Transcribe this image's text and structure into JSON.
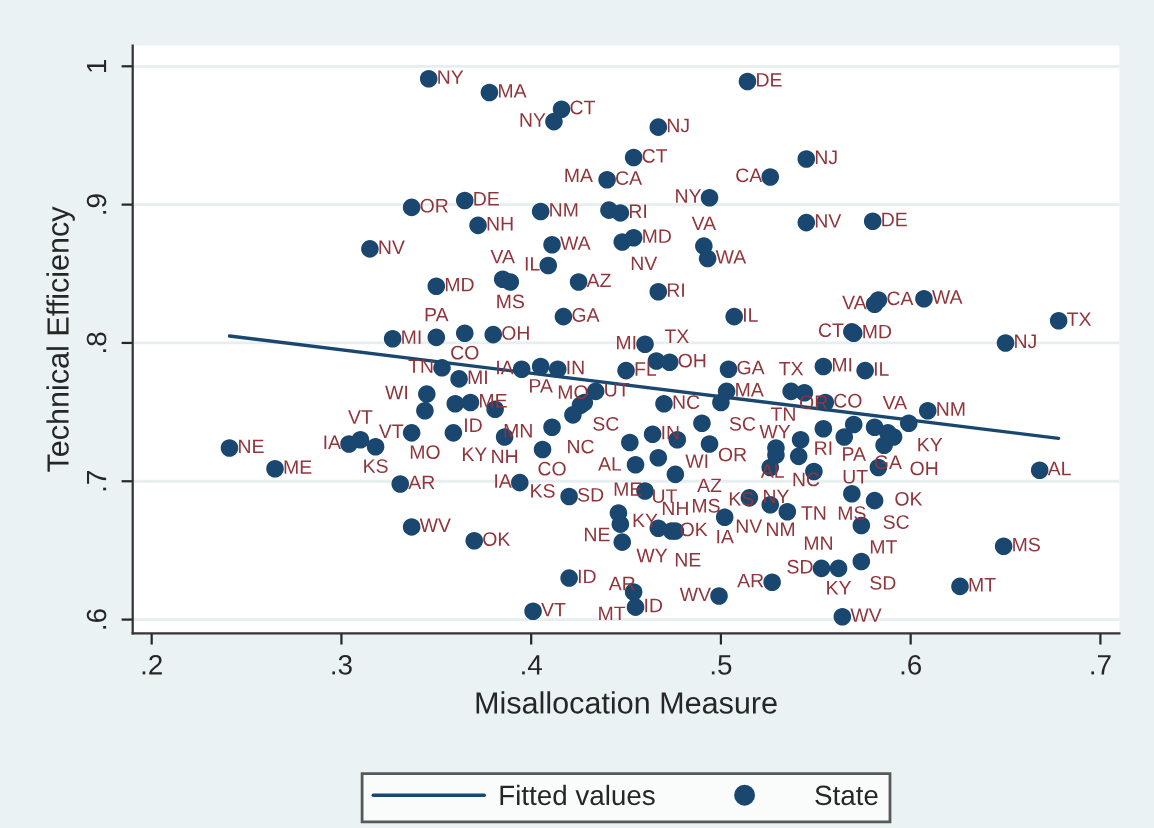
{
  "chart_data": {
    "type": "scatter",
    "xlabel": "Misallocation Measure",
    "ylabel": "Technical Efficiency",
    "xlim": [
      0.19,
      0.71
    ],
    "ylim": [
      0.59,
      1.015
    ],
    "xticks": [
      {
        "value": 0.2,
        "label": ".2"
      },
      {
        "value": 0.3,
        "label": ".3"
      },
      {
        "value": 0.4,
        "label": ".4"
      },
      {
        "value": 0.5,
        "label": ".5"
      },
      {
        "value": 0.6,
        "label": ".6"
      },
      {
        "value": 0.7,
        "label": ".7"
      }
    ],
    "yticks": [
      {
        "value": 0.6,
        "label": ".6"
      },
      {
        "value": 0.7,
        "label": ".7"
      },
      {
        "value": 0.8,
        "label": ".8"
      },
      {
        "value": 0.9,
        "label": ".9"
      },
      {
        "value": 1,
        "label": "1"
      }
    ],
    "grid": "y",
    "legend": "bottom",
    "series": [
      {
        "name": "Fitted values",
        "type": "line",
        "marker": "none",
        "color": "#1a476f",
        "x": [
          0.241,
          0.678
        ],
        "values": [
          0.805,
          0.731
        ]
      },
      {
        "name": "State",
        "marker": "circle",
        "color": "#1a476f",
        "x": [
          0.346,
          0.378,
          0.416,
          0.412,
          0.337,
          0.365,
          0.372,
          0.405,
          0.315,
          0.411,
          0.409,
          0.35,
          0.385,
          0.389,
          0.425,
          0.417,
          0.327,
          0.35,
          0.365,
          0.38,
          0.514,
          0.467,
          0.454,
          0.44,
          0.545,
          0.526,
          0.494,
          0.441,
          0.447,
          0.448,
          0.454,
          0.491,
          0.493,
          0.545,
          0.58,
          0.467,
          0.507,
          0.583,
          0.581,
          0.607,
          0.678,
          0.569,
          0.57,
          0.65,
          0.46,
          0.353,
          0.362,
          0.395,
          0.405,
          0.414,
          0.345,
          0.344,
          0.36,
          0.368,
          0.381,
          0.434,
          0.428,
          0.426,
          0.422,
          0.411,
          0.386,
          0.406,
          0.359,
          0.337,
          0.304,
          0.31,
          0.318,
          0.241,
          0.265,
          0.331,
          0.394,
          0.42,
          0.337,
          0.37,
          0.42,
          0.401,
          0.45,
          0.466,
          0.473,
          0.504,
          0.554,
          0.576,
          0.47,
          0.5,
          0.503,
          0.537,
          0.544,
          0.555,
          0.49,
          0.464,
          0.477,
          0.452,
          0.494,
          0.467,
          0.455,
          0.476,
          0.609,
          0.554,
          0.57,
          0.581,
          0.599,
          0.591,
          0.588,
          0.586,
          0.583,
          0.542,
          0.565,
          0.529,
          0.529,
          0.541,
          0.526,
          0.549,
          0.668,
          0.46,
          0.446,
          0.447,
          0.448,
          0.467,
          0.474,
          0.476,
          0.502,
          0.515,
          0.526,
          0.535,
          0.569,
          0.581,
          0.574,
          0.649,
          0.553,
          0.562,
          0.574,
          0.527,
          0.626,
          0.454,
          0.455,
          0.499,
          0.564
        ],
        "values": [
          0.991,
          0.981,
          0.969,
          0.96,
          0.898,
          0.903,
          0.885,
          0.895,
          0.868,
          0.871,
          0.856,
          0.841,
          0.846,
          0.844,
          0.844,
          0.819,
          0.803,
          0.804,
          0.807,
          0.806,
          0.989,
          0.956,
          0.934,
          0.918,
          0.933,
          0.92,
          0.905,
          0.896,
          0.894,
          0.873,
          0.876,
          0.87,
          0.861,
          0.887,
          0.888,
          0.837,
          0.819,
          0.831,
          0.828,
          0.832,
          0.816,
          0.808,
          0.807,
          0.8,
          0.799,
          0.782,
          0.774,
          0.781,
          0.783,
          0.781,
          0.763,
          0.751,
          0.756,
          0.757,
          0.752,
          0.765,
          0.757,
          0.755,
          0.748,
          0.739,
          0.732,
          0.723,
          0.735,
          0.735,
          0.727,
          0.73,
          0.725,
          0.724,
          0.709,
          0.698,
          0.699,
          0.689,
          0.667,
          0.657,
          0.63,
          0.606,
          0.78,
          0.787,
          0.786,
          0.781,
          0.783,
          0.78,
          0.756,
          0.757,
          0.765,
          0.765,
          0.764,
          0.757,
          0.742,
          0.734,
          0.73,
          0.728,
          0.727,
          0.717,
          0.712,
          0.705,
          0.751,
          0.738,
          0.741,
          0.739,
          0.742,
          0.732,
          0.735,
          0.726,
          0.71,
          0.73,
          0.732,
          0.724,
          0.719,
          0.718,
          0.71,
          0.707,
          0.708,
          0.693,
          0.677,
          0.669,
          0.656,
          0.666,
          0.664,
          0.664,
          0.674,
          0.688,
          0.683,
          0.678,
          0.691,
          0.686,
          0.668,
          0.653,
          0.637,
          0.637,
          0.642,
          0.627,
          0.624,
          0.62,
          0.609,
          0.617,
          0.602
        ],
        "value_labels": [
          "NY",
          "MA",
          "CT",
          "NY",
          "OR",
          "DE",
          "NH",
          "NM",
          "NV",
          "WA",
          "IL",
          "MD",
          "VA",
          "MS",
          "AZ",
          "GA",
          "MI",
          "PA",
          "CO",
          "OH",
          "DE",
          "NJ",
          "CT",
          "CA",
          "NJ",
          "CA",
          "NY",
          "MA",
          "RI",
          "NV",
          "MD",
          "VA",
          "WA",
          "NV",
          "DE",
          "RI",
          "IL",
          "CA",
          "VA",
          "WA",
          "TX",
          "CT",
          "MD",
          "NJ",
          "MI",
          "TN",
          "MI",
          "IA",
          "PA",
          "IN",
          "WI",
          "MO",
          "ID",
          "ME",
          "MN",
          "UT",
          "SC",
          "NC",
          "MO",
          "CO",
          "NH",
          "KS",
          "KY",
          "VT",
          "IA",
          "VT",
          "KS",
          "NE",
          "ME",
          "AR",
          "IA",
          "SD",
          "WV",
          "OK",
          "ID",
          "VT",
          "FL",
          "TX",
          "OH",
          "GA",
          "MI",
          "IL",
          "NC",
          "SC",
          "MA",
          "TX",
          "TN",
          "CO",
          "OR",
          "IN",
          "WI",
          "AL",
          "AZ",
          "ME",
          "UT",
          "MS",
          "NM",
          "RI",
          "PA",
          "VA",
          "KY",
          "OH",
          "GA",
          "UT",
          "OK",
          "AL",
          "OR",
          "NC",
          "NY",
          "WY",
          "KS",
          "TN",
          "AL",
          "KY",
          "NE",
          "WY",
          "AR",
          "NE",
          "OK",
          "NH",
          "IA",
          "NM",
          "NV",
          "MN",
          "MS",
          "SC",
          "MT",
          "MS",
          "SD",
          "KY",
          "SD",
          "AR",
          "MT",
          "MT",
          "ID",
          "WV",
          "WV"
        ]
      }
    ]
  }
}
